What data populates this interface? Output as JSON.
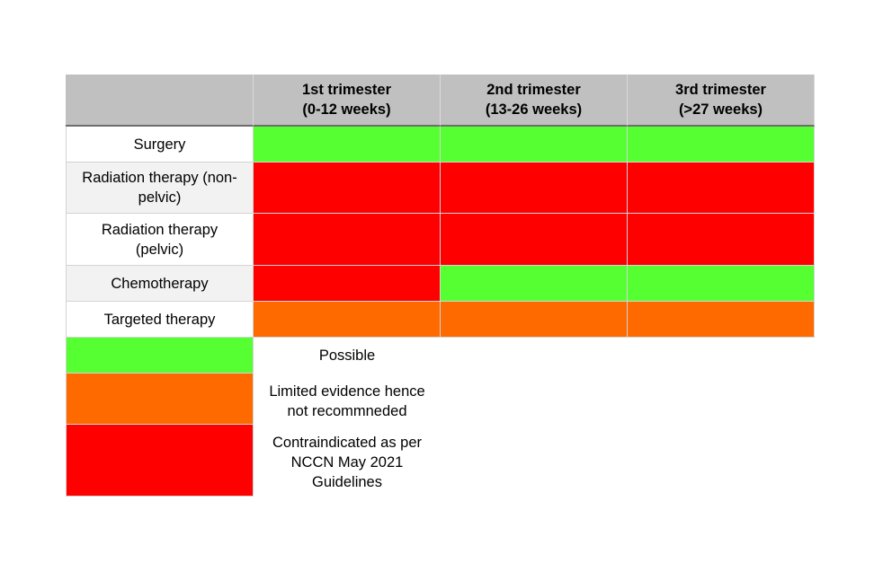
{
  "colors": {
    "possible": "#55ff31",
    "limited": "#ff6a00",
    "contraindicated": "#ff0000",
    "header_bg": "#bfc0bf"
  },
  "header": {
    "corner": "",
    "col1": "1st trimester\n(0-12 weeks)",
    "col2": "2nd trimester\n(13-26 weeks)",
    "col3": "3rd trimester\n(>27 weeks)"
  },
  "rows": [
    {
      "label": "Surgery",
      "status": [
        "possible",
        "possible",
        "possible"
      ]
    },
    {
      "label": "Radiation therapy (non-\npelvic)",
      "status": [
        "contraindicated",
        "contraindicated",
        "contraindicated"
      ]
    },
    {
      "label": "Radiation therapy\n(pelvic)",
      "status": [
        "contraindicated",
        "contraindicated",
        "contraindicated"
      ]
    },
    {
      "label": "Chemotherapy",
      "status": [
        "contraindicated",
        "possible",
        "possible"
      ]
    },
    {
      "label": "Targeted therapy",
      "status": [
        "limited",
        "limited",
        "limited"
      ]
    }
  ],
  "legend": [
    {
      "status": "possible",
      "text": "Possible"
    },
    {
      "status": "limited",
      "text": "Limited evidence hence\nnot recommneded"
    },
    {
      "status": "contraindicated",
      "text": "Contraindicated as per\nNCCN May 2021\nGuidelines"
    }
  ]
}
